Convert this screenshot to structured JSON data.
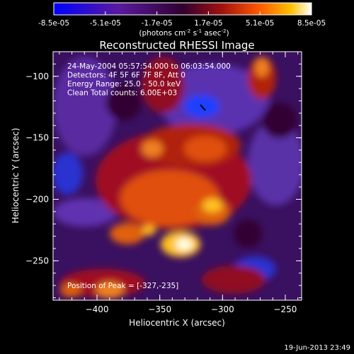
{
  "colorbar": {
    "ticks": [
      "-8.5e-05",
      "-5.1e-05",
      "-1.7e-05",
      "1.7e-05",
      "5.1e-05",
      "8.5e-05"
    ],
    "unit_text": "(photons cm",
    "unit_sup1": "-2",
    "unit_mid": " s",
    "unit_sup2": "-1",
    "unit_mid2": " asec",
    "unit_sup3": "-2",
    "unit_end": ")"
  },
  "chart_data": {
    "type": "heatmap",
    "title": "Reconstructed RHESSI Image",
    "xlabel": "Heliocentric X (arcsec)",
    "ylabel": "Heliocentric Y (arcsec)",
    "xlim": [
      -435,
      -237
    ],
    "ylim": [
      -282,
      -80
    ],
    "x_ticks": [
      -400,
      -350,
      -300,
      -250
    ],
    "y_ticks": [
      -100,
      -150,
      -200,
      -250
    ],
    "value_range": [
      -8.5e-05,
      8.5e-05
    ],
    "annotations": [
      "24-May-2004 05:57:54.000 to 06:03:54.000",
      "Detectors: 4F 5F 6F 7F 8F, Att 0",
      "Energy Range: 25.0 - 50.0 keV",
      "Clean     Total counts: 6.00E+03"
    ],
    "peak_label": "Position of Peak = [-327,-235]",
    "peak": [
      -327,
      -235
    ],
    "footer_timestamp": "19-Jun-2013 23:49"
  }
}
